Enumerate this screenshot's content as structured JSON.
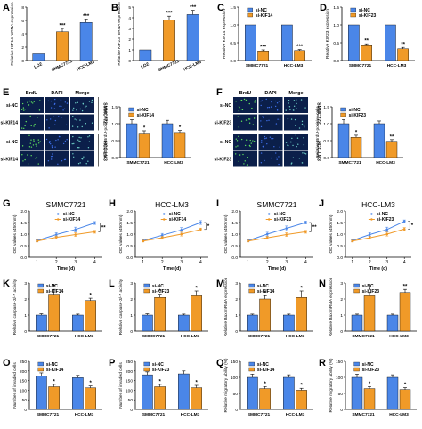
{
  "colors": {
    "blue": "#4a86e8",
    "orange": "#f09a28",
    "err": "#000000",
    "sig": "#000000",
    "micro_bg": "#0b1f4a",
    "micro_dot": "#5fe05f"
  },
  "chart_data": [
    {
      "id": "A",
      "type": "bar",
      "categories": [
        "LO2",
        "SMMC7721",
        "HCC-LM3"
      ],
      "values": [
        1.0,
        4.3,
        5.7
      ],
      "errors": [
        0,
        0.5,
        0.5
      ],
      "sig": [
        "",
        "***",
        "***"
      ],
      "ylabel": "Relative KIF14 mRNA expression",
      "ylim": [
        0,
        8
      ],
      "yticks": [
        0,
        2,
        4,
        6,
        8
      ]
    },
    {
      "id": "B",
      "type": "bar",
      "categories": [
        "LO2",
        "SMMC7721",
        "HCC-LM3"
      ],
      "values": [
        1.0,
        3.8,
        4.3
      ],
      "errors": [
        0,
        0.35,
        0.4
      ],
      "sig": [
        "",
        "***",
        "***"
      ],
      "ylabel": "Relative KIF23 mRNA expression",
      "ylim": [
        0,
        5
      ],
      "yticks": [
        0,
        1,
        2,
        3,
        4,
        5
      ]
    },
    {
      "id": "C",
      "type": "bar",
      "categories": [
        "SMMC7721",
        "HCC-LM3"
      ],
      "series": [
        {
          "name": "si-NC",
          "values": [
            1.0,
            1.0
          ],
          "errors": [
            0,
            0
          ]
        },
        {
          "name": "si-KIF14",
          "values": [
            0.27,
            0.28
          ],
          "errors": [
            0.03,
            0.03
          ]
        }
      ],
      "sig": [
        "***",
        "***"
      ],
      "ylabel": "Relative KIF14 expression",
      "ylim": [
        0,
        1.5
      ],
      "yticks": [
        0.0,
        0.5,
        1.0,
        1.5
      ]
    },
    {
      "id": "D",
      "type": "bar",
      "categories": [
        "SMMC7721",
        "HCC-LM3"
      ],
      "series": [
        {
          "name": "si-NC",
          "values": [
            1.0,
            1.0
          ],
          "errors": [
            0,
            0
          ]
        },
        {
          "name": "si-KIF23",
          "values": [
            0.42,
            0.33
          ],
          "errors": [
            0.05,
            0.04
          ]
        }
      ],
      "sig": [
        "**",
        "**"
      ],
      "ylabel": "Relative KIF23 expression",
      "ylim": [
        0,
        1.5
      ],
      "yticks": [
        0.0,
        0.5,
        1.0,
        1.5
      ]
    },
    {
      "id": "E",
      "type": "bar",
      "categories": [
        "SMMC7721",
        "HCC-LM3"
      ],
      "series": [
        {
          "name": "si-NC",
          "values": [
            1.0,
            1.0
          ],
          "errors": [
            0.12,
            0.1
          ]
        },
        {
          "name": "si-KIF14",
          "values": [
            0.72,
            0.74
          ],
          "errors": [
            0.07,
            0.06
          ]
        }
      ],
      "sig": [
        "*",
        "*"
      ],
      "ylabel": "Relative BrdU-positive cells",
      "ylim": [
        0,
        1.5
      ],
      "yticks": [
        0.0,
        0.5,
        1.0,
        1.5
      ]
    },
    {
      "id": "F",
      "type": "bar",
      "categories": [
        "SMMC7721",
        "HCC-LM3"
      ],
      "series": [
        {
          "name": "si-NC",
          "values": [
            1.0,
            1.0
          ],
          "errors": [
            0.12,
            0.08
          ]
        },
        {
          "name": "si-KIF23",
          "values": [
            0.6,
            0.48
          ],
          "errors": [
            0.06,
            0.05
          ]
        }
      ],
      "sig": [
        "*",
        "**"
      ],
      "ylabel": "Relative BrdU-positive cells",
      "ylim": [
        0,
        1.5
      ],
      "yticks": [
        0.0,
        0.5,
        1.0,
        1.5
      ]
    },
    {
      "id": "G",
      "type": "line",
      "title": "SMMC7721",
      "x": [
        1,
        2,
        3,
        4
      ],
      "series": [
        {
          "name": "si-NC",
          "values": [
            0.72,
            0.98,
            1.2,
            1.48
          ],
          "errors": [
            0.04,
            0.08,
            0.1,
            0.06
          ]
        },
        {
          "name": "si-KIF14",
          "values": [
            0.7,
            0.86,
            0.98,
            1.1
          ],
          "errors": [
            0.04,
            0.06,
            0.08,
            0.06
          ]
        }
      ],
      "sig_end": "**",
      "xlabel": "Time (d)",
      "ylabel": "OD values (450 nm)",
      "ylim": [
        0.0,
        2.0
      ],
      "yticks": [
        0.0,
        0.5,
        1.0,
        1.5,
        2.0
      ]
    },
    {
      "id": "H",
      "type": "line",
      "title": "HCC-LM3",
      "x": [
        1,
        2,
        3,
        4
      ],
      "series": [
        {
          "name": "si-NC",
          "values": [
            0.72,
            0.95,
            1.18,
            1.5
          ],
          "errors": [
            0.04,
            0.08,
            0.1,
            0.08
          ]
        },
        {
          "name": "si-KIF14",
          "values": [
            0.7,
            0.84,
            1.0,
            1.2
          ],
          "errors": [
            0.04,
            0.06,
            0.08,
            0.06
          ]
        }
      ],
      "sig_end": "*",
      "xlabel": "Time (d)",
      "ylabel": "OD values (450 nm)",
      "ylim": [
        0.0,
        2.0
      ],
      "yticks": [
        0.0,
        0.5,
        1.0,
        1.5,
        2.0
      ]
    },
    {
      "id": "I",
      "type": "line",
      "title": "SMMC7721",
      "x": [
        1,
        2,
        3,
        4
      ],
      "series": [
        {
          "name": "si-NC",
          "values": [
            0.72,
            1.0,
            1.25,
            1.5
          ],
          "errors": [
            0.04,
            0.08,
            0.1,
            0.06
          ]
        },
        {
          "name": "si-KIF23",
          "values": [
            0.7,
            0.84,
            0.98,
            1.1
          ],
          "errors": [
            0.04,
            0.06,
            0.08,
            0.06
          ]
        }
      ],
      "sig_end": "**",
      "xlabel": "Time (d)",
      "ylabel": "OD values (450 nm)",
      "ylim": [
        0.0,
        2.0
      ],
      "yticks": [
        0.0,
        0.5,
        1.0,
        1.5,
        2.0
      ]
    },
    {
      "id": "J",
      "type": "line",
      "title": "HCC-LM3",
      "x": [
        1,
        2,
        3,
        4
      ],
      "series": [
        {
          "name": "si-NC",
          "values": [
            0.72,
            0.98,
            1.2,
            1.55
          ],
          "errors": [
            0.04,
            0.08,
            0.1,
            0.06
          ]
        },
        {
          "name": "si-KIF23",
          "values": [
            0.7,
            0.84,
            1.0,
            1.22
          ],
          "errors": [
            0.04,
            0.06,
            0.08,
            0.06
          ]
        }
      ],
      "sig_end": "*",
      "xlabel": "Time (d)",
      "ylabel": "OD values (450 nm)",
      "ylim": [
        0.0,
        2.0
      ],
      "yticks": [
        0.0,
        0.5,
        1.0,
        1.5,
        2.0
      ]
    },
    {
      "id": "K",
      "type": "bar",
      "categories": [
        "SMMC7721",
        "HCC-LM3"
      ],
      "series": [
        {
          "name": "si-NC",
          "values": [
            1.0,
            1.0
          ],
          "errors": [
            0.08,
            0.06
          ]
        },
        {
          "name": "si-KIF14",
          "values": [
            2.3,
            1.9
          ],
          "errors": [
            0.3,
            0.15
          ]
        }
      ],
      "sig": [
        "*",
        "*"
      ],
      "ylabel": "Relative caspase-3/-7 activity",
      "ylim": [
        0,
        3
      ],
      "yticks": [
        0,
        1,
        2,
        3
      ]
    },
    {
      "id": "L",
      "type": "bar",
      "categories": [
        "SMMC7721",
        "HCC-LM3"
      ],
      "series": [
        {
          "name": "si-NC",
          "values": [
            1.0,
            1.0
          ],
          "errors": [
            0.08,
            0.06
          ]
        },
        {
          "name": "si-KIF23",
          "values": [
            2.1,
            2.2
          ],
          "errors": [
            0.2,
            0.3
          ]
        }
      ],
      "sig": [
        "*",
        "*"
      ],
      "ylabel": "Relative caspase-3/-7 activity",
      "ylim": [
        0,
        3
      ],
      "yticks": [
        0,
        1,
        2,
        3
      ]
    },
    {
      "id": "M",
      "type": "bar",
      "categories": [
        "SMMC7721",
        "HCC-LM3"
      ],
      "series": [
        {
          "name": "si-NC",
          "values": [
            1.0,
            1.0
          ],
          "errors": [
            0.06,
            0.06
          ]
        },
        {
          "name": "si-KIF14",
          "values": [
            2.0,
            2.1
          ],
          "errors": [
            0.2,
            0.4
          ]
        }
      ],
      "sig": [
        "*",
        "*"
      ],
      "ylabel": "Relative Bax mRNA expression",
      "ylim": [
        0,
        3
      ],
      "yticks": [
        0,
        1,
        2,
        3
      ]
    },
    {
      "id": "N",
      "type": "bar",
      "categories": [
        "SMMC7721",
        "HCC-LM3"
      ],
      "series": [
        {
          "name": "si-NC",
          "values": [
            1.0,
            1.0
          ],
          "errors": [
            0.06,
            0.06
          ]
        },
        {
          "name": "si-KIF23",
          "values": [
            2.2,
            2.4
          ],
          "errors": [
            0.2,
            0.2
          ]
        }
      ],
      "sig": [
        "*",
        "**"
      ],
      "ylabel": "Relative Bax mRNA expression",
      "ylim": [
        0,
        3
      ],
      "yticks": [
        0,
        1,
        2,
        3
      ]
    },
    {
      "id": "O",
      "type": "bar",
      "categories": [
        "SMMC7721",
        "HCC-LM3"
      ],
      "series": [
        {
          "name": "si-NC",
          "values": [
            175,
            165
          ],
          "errors": [
            15,
            12
          ]
        },
        {
          "name": "si-KIF14",
          "values": [
            118,
            112
          ],
          "errors": [
            12,
            10
          ]
        }
      ],
      "sig": [
        "*",
        "*"
      ],
      "ylabel": "Number of invaded cells",
      "ylim": [
        0,
        250
      ],
      "yticks": [
        0,
        50,
        100,
        150,
        200,
        250
      ]
    },
    {
      "id": "P",
      "type": "bar",
      "categories": [
        "SMMC7721",
        "HCC-LM3"
      ],
      "series": [
        {
          "name": "si-NC",
          "values": [
            180,
            185
          ],
          "errors": [
            15,
            15
          ]
        },
        {
          "name": "si-KIF23",
          "values": [
            118,
            113
          ],
          "errors": [
            12,
            12
          ]
        }
      ],
      "sig": [
        "*",
        "*"
      ],
      "ylabel": "Number of invaded cells",
      "ylim": [
        0,
        250
      ],
      "yticks": [
        0,
        50,
        100,
        150,
        200,
        250
      ]
    },
    {
      "id": "Q",
      "type": "bar",
      "categories": [
        "SMMC7721",
        "HCC-LM3"
      ],
      "series": [
        {
          "name": "si-NC",
          "values": [
            100,
            100
          ],
          "errors": [
            10,
            8
          ]
        },
        {
          "name": "si-KIF14",
          "values": [
            65,
            60
          ],
          "errors": [
            6,
            6
          ]
        }
      ],
      "sig": [
        "*",
        "*"
      ],
      "ylabel": "Relative migratory ability (%)",
      "ylim": [
        0,
        150
      ],
      "yticks": [
        0,
        50,
        100,
        150
      ]
    },
    {
      "id": "R",
      "type": "bar",
      "categories": [
        "SMMC7721",
        "HCC-LM3"
      ],
      "series": [
        {
          "name": "si-NC",
          "values": [
            100,
            100
          ],
          "errors": [
            10,
            8
          ]
        },
        {
          "name": "si-KIF23",
          "values": [
            65,
            62
          ],
          "errors": [
            6,
            6
          ]
        }
      ],
      "sig": [
        "*",
        "*"
      ],
      "ylabel": "Relative migratory ability (%)",
      "ylim": [
        0,
        150
      ],
      "yticks": [
        0,
        50,
        100,
        150
      ]
    }
  ],
  "micrographs": [
    {
      "id": "E",
      "columns": [
        "BrdU",
        "DAPI",
        "Merge"
      ],
      "rows": [
        "si-NC",
        "si-KIF14",
        "si-NC",
        "si-KIF14"
      ],
      "groups": [
        "SMMC7721",
        "HCC-LM3"
      ]
    },
    {
      "id": "F",
      "columns": [
        "BrdU",
        "DAPI",
        "Merge"
      ],
      "rows": [
        "si-NC",
        "si-KIF23",
        "si-NC",
        "si-KIF23"
      ],
      "groups": [
        "SMMC7721",
        "HCC-LM3"
      ]
    }
  ]
}
